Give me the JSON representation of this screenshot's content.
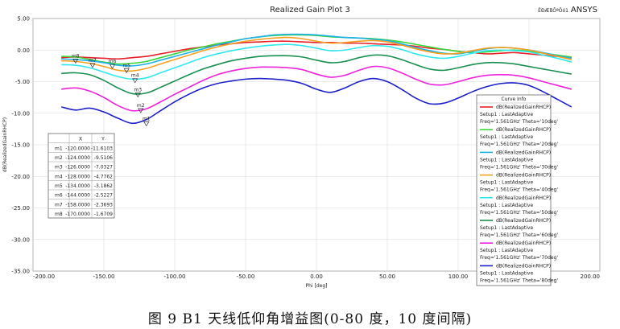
{
  "chart_data": {
    "type": "line",
    "title": "Realized Gain Plot 3",
    "brand": "ANSYS",
    "corner_text": "ÊÐÆßÔªÕó1",
    "xlabel": "Phi [deg]",
    "ylabel": "dB(RealizedGainRHCP)",
    "xlim": [
      -200,
      200
    ],
    "ylim": [
      -35,
      5
    ],
    "xticks": [
      -200,
      -150,
      -100,
      -50,
      0,
      50,
      100,
      150,
      200
    ],
    "xtick_labels": [
      "-200.00",
      "-150.00",
      "-100.00",
      "-50.00",
      "0.00",
      "50.00",
      "100.00",
      "150.00",
      "200.00"
    ],
    "yticks": [
      5,
      0,
      -5,
      -10,
      -15,
      -20,
      -25,
      -30,
      -35
    ],
    "ytick_labels": [
      "5.00",
      "0.00",
      "-5.00",
      "-10.00",
      "-15.00",
      "-20.00",
      "-25.00",
      "-30.00",
      "-35.00"
    ],
    "grid": true,
    "legend": {
      "title": "Curve Info",
      "placement": "bottom-right",
      "entries": [
        {
          "expr": "dB(RealizedGainRHCP)",
          "setup": "Setup1 : LastAdaptive",
          "freq": "Freq='1.561GHz' Theta='10deg'",
          "color": "#e8202a"
        },
        {
          "expr": "dB(RealizedGainRHCP)",
          "setup": "Setup1 : LastAdaptive",
          "freq": "Freq='1.561GHz' Theta='20deg'",
          "color": "#3ad63a"
        },
        {
          "expr": "dB(RealizedGainRHCP)",
          "setup": "Setup1 : LastAdaptive",
          "freq": "Freq='1.561GHz' Theta='30deg'",
          "color": "#1eb0e8"
        },
        {
          "expr": "dB(RealizedGainRHCP)",
          "setup": "Setup1 : LastAdaptive",
          "freq": "Freq='1.561GHz' Theta='40deg'",
          "color": "#f5a020"
        },
        {
          "expr": "dB(RealizedGainRHCP)",
          "setup": "Setup1 : LastAdaptive",
          "freq": "Freq='1.561GHz' Theta='50deg'",
          "color": "#30e8f0"
        },
        {
          "expr": "dB(RealizedGainRHCP)",
          "setup": "Setup1 : LastAdaptive",
          "freq": "Freq='1.561GHz' Theta='60deg'",
          "color": "#1a9050"
        },
        {
          "expr": "dB(RealizedGainRHCP)",
          "setup": "Setup1 : LastAdaptive",
          "freq": "Freq='1.561GHz' Theta='70deg'",
          "color": "#ee22dd"
        },
        {
          "expr": "dB(RealizedGainRHCP)",
          "setup": "Setup1 : LastAdaptive",
          "freq": "Freq='1.561GHz' Theta='80deg'",
          "color": "#1c20c8"
        }
      ]
    },
    "x": [
      -180,
      -170,
      -160,
      -150,
      -140,
      -130,
      -120,
      -110,
      -100,
      -90,
      -80,
      -70,
      -60,
      -50,
      -40,
      -30,
      -20,
      -10,
      0,
      10,
      20,
      30,
      40,
      50,
      60,
      70,
      80,
      90,
      100,
      110,
      120,
      130,
      140,
      150,
      160,
      170,
      180
    ],
    "series": [
      {
        "color": "#e8202a",
        "values": [
          -1.2,
          -1.1,
          -1.2,
          -1.3,
          -1.4,
          -1.2,
          -1.0,
          -0.6,
          -0.2,
          0.2,
          0.5,
          0.8,
          1.0,
          1.2,
          1.3,
          1.4,
          1.4,
          1.3,
          1.2,
          1.2,
          1.1,
          1.1,
          1.0,
          0.9,
          0.8,
          0.6,
          0.3,
          0.1,
          -0.2,
          -0.4,
          -0.6,
          -0.5,
          -0.4,
          -0.6,
          -0.8,
          -1.0,
          -1.2
        ]
      },
      {
        "color": "#3ad63a",
        "values": [
          -1.0,
          -1.1,
          -1.5,
          -1.9,
          -2.2,
          -2.1,
          -1.8,
          -1.2,
          -0.6,
          0.0,
          0.5,
          1.0,
          1.4,
          1.8,
          2.1,
          2.3,
          2.4,
          2.4,
          2.3,
          2.1,
          2.0,
          1.9,
          1.8,
          1.6,
          1.3,
          0.9,
          0.5,
          0.1,
          -0.2,
          -0.4,
          -0.3,
          -0.1,
          0.0,
          -0.2,
          -0.5,
          -0.8,
          -1.1
        ]
      },
      {
        "color": "#1eb0e8",
        "values": [
          -1.4,
          -1.5,
          -1.7,
          -2.0,
          -2.4,
          -2.5,
          -2.2,
          -1.6,
          -1.0,
          -0.4,
          0.2,
          0.8,
          1.3,
          1.8,
          2.1,
          2.4,
          2.5,
          2.5,
          2.4,
          2.2,
          2.0,
          1.9,
          1.7,
          1.5,
          1.0,
          0.4,
          -0.1,
          -0.5,
          -0.6,
          -0.2,
          0.2,
          0.4,
          0.3,
          0.0,
          -0.4,
          -0.9,
          -1.3
        ]
      },
      {
        "color": "#f5a020",
        "values": [
          -1.7,
          -1.8,
          -2.1,
          -2.6,
          -3.2,
          -3.3,
          -2.9,
          -2.2,
          -1.5,
          -0.8,
          -0.1,
          0.5,
          1.0,
          1.4,
          1.7,
          1.9,
          2.0,
          1.8,
          1.4,
          1.1,
          1.2,
          1.4,
          1.5,
          1.3,
          0.8,
          0.2,
          -0.3,
          -0.6,
          -0.5,
          -0.1,
          0.3,
          0.4,
          0.3,
          0.0,
          -0.5,
          -1.0,
          -1.5
        ]
      },
      {
        "color": "#30e8f0",
        "values": [
          -2.3,
          -2.4,
          -2.8,
          -3.5,
          -4.2,
          -4.6,
          -4.4,
          -3.6,
          -2.8,
          -2.0,
          -1.2,
          -0.6,
          -0.1,
          0.3,
          0.6,
          0.8,
          0.9,
          0.7,
          0.3,
          -0.1,
          0.0,
          0.4,
          0.7,
          0.6,
          0.1,
          -0.6,
          -1.1,
          -1.3,
          -1.0,
          -0.5,
          -0.1,
          0.0,
          -0.1,
          -0.3,
          -0.8,
          -1.3,
          -1.9
        ]
      },
      {
        "color": "#1a9050",
        "values": [
          -3.7,
          -3.6,
          -3.9,
          -4.8,
          -6.0,
          -6.9,
          -6.8,
          -5.9,
          -4.9,
          -3.9,
          -3.0,
          -2.3,
          -1.7,
          -1.3,
          -1.0,
          -0.9,
          -0.9,
          -1.1,
          -1.6,
          -2.0,
          -1.8,
          -1.2,
          -0.8,
          -0.9,
          -1.5,
          -2.3,
          -3.0,
          -3.2,
          -2.8,
          -2.3,
          -2.0,
          -2.0,
          -2.2,
          -2.6,
          -3.0,
          -3.4,
          -3.8
        ]
      },
      {
        "color": "#ee22dd",
        "values": [
          -6.2,
          -6.0,
          -6.5,
          -7.5,
          -8.8,
          -9.6,
          -9.3,
          -8.2,
          -7.0,
          -5.9,
          -4.8,
          -3.9,
          -3.3,
          -2.9,
          -2.7,
          -2.7,
          -2.8,
          -3.1,
          -3.8,
          -4.3,
          -4.0,
          -3.2,
          -2.6,
          -2.8,
          -3.6,
          -4.6,
          -5.4,
          -5.5,
          -5.0,
          -4.4,
          -4.0,
          -3.9,
          -4.0,
          -4.4,
          -5.0,
          -5.6,
          -6.2
        ]
      },
      {
        "color": "#1c20c8",
        "values": [
          -9.0,
          -9.5,
          -9.2,
          -9.8,
          -10.8,
          -11.6,
          -11.0,
          -9.6,
          -8.2,
          -7.0,
          -6.0,
          -5.3,
          -4.9,
          -4.6,
          -4.5,
          -4.6,
          -4.8,
          -5.3,
          -6.2,
          -6.7,
          -6.0,
          -5.0,
          -4.5,
          -5.0,
          -6.2,
          -7.6,
          -8.5,
          -8.4,
          -7.6,
          -6.6,
          -5.8,
          -5.3,
          -5.2,
          -5.6,
          -6.6,
          -7.8,
          -9.0
        ]
      }
    ],
    "markers": {
      "columns": [
        "",
        "X",
        "Y"
      ],
      "rows": [
        {
          "name": "m1",
          "x": -120,
          "x_text": "-120.0000",
          "y": -11.6103,
          "y_text": "-11.6103"
        },
        {
          "name": "m2",
          "x": -124,
          "x_text": "-124.0000",
          "y": -9.5106,
          "y_text": "-9.5106"
        },
        {
          "name": "m3",
          "x": -126,
          "x_text": "-126.0000",
          "y": -7.0327,
          "y_text": "-7.0327"
        },
        {
          "name": "m4",
          "x": -128,
          "x_text": "-128.0000",
          "y": -4.7762,
          "y_text": "-4.7762"
        },
        {
          "name": "m5",
          "x": -134,
          "x_text": "-134.0000",
          "y": -3.1862,
          "y_text": "-3.1862"
        },
        {
          "name": "m6",
          "x": -144,
          "x_text": "-144.0000",
          "y": -2.5227,
          "y_text": "-2.5227"
        },
        {
          "name": "m7",
          "x": -158,
          "x_text": "-158.0000",
          "y": -2.3693,
          "y_text": "-2.3693"
        },
        {
          "name": "m8",
          "x": -170,
          "x_text": "-170.0000",
          "y": -1.6709,
          "y_text": "-1.6709"
        }
      ]
    }
  },
  "caption": "图 9 B1 天线低仰角增益图(0-80 度，10 度间隔)"
}
